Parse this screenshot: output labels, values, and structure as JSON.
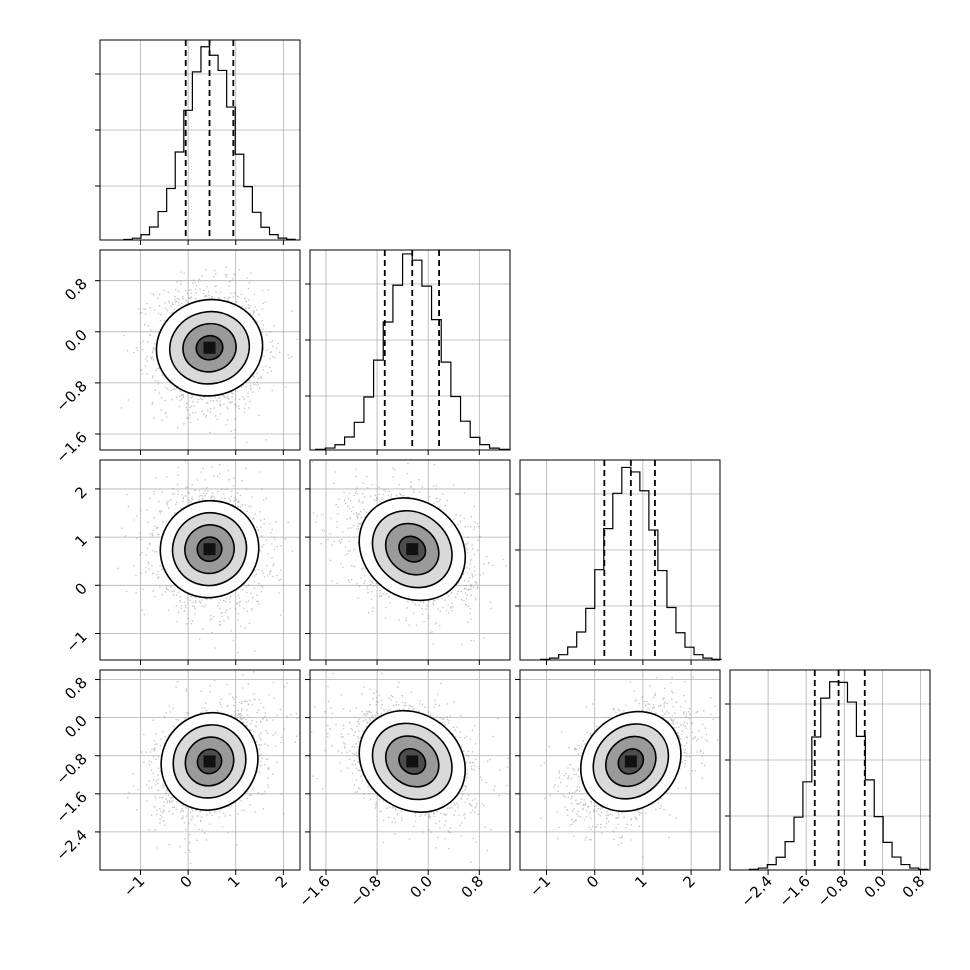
{
  "chart_data": {
    "type": "corner",
    "params": [
      {
        "range": [
          -1.85,
          2.35
        ],
        "ticks": [
          -1,
          0,
          1,
          2
        ],
        "tick_labels": [
          "−1",
          "0",
          "1",
          "2"
        ],
        "median": 0.45,
        "q16": -0.05,
        "q84": 0.95,
        "sigma": 0.5,
        "hist_max_frac": 0.95
      },
      {
        "range": [
          -1.85,
          1.28
        ],
        "ticks": [
          -1.6,
          -0.8,
          0.0,
          0.8
        ],
        "tick_labels": [
          "−1.6",
          "−0.8",
          "0.0",
          "0.8"
        ],
        "median": -0.25,
        "q16": -0.68,
        "q84": 0.17,
        "sigma": 0.42,
        "hist_max_frac": 0.96
      },
      {
        "range": [
          -1.55,
          2.6
        ],
        "ticks": [
          -1,
          0,
          1,
          2
        ],
        "tick_labels": [
          "−1",
          "0",
          "1",
          "2"
        ],
        "median": 0.75,
        "q16": 0.2,
        "q84": 1.25,
        "sigma": 0.52,
        "hist_max_frac": 0.95
      },
      {
        "range": [
          -3.2,
          1.0
        ],
        "ticks": [
          -2.4,
          -1.6,
          -0.8,
          0.0,
          0.8
        ],
        "tick_labels": [
          "−2.4",
          "−1.6",
          "−0.8",
          "0.0",
          "0.8"
        ],
        "median": -0.92,
        "q16": -1.42,
        "q84": -0.37,
        "sigma": 0.52,
        "hist_max_frac": 0.96
      }
    ],
    "pairs": [
      {
        "x": 0,
        "y": 1,
        "rho": -0.05
      },
      {
        "x": 0,
        "y": 2,
        "rho": -0.08
      },
      {
        "x": 1,
        "y": 2,
        "rho": -0.3
      },
      {
        "x": 0,
        "y": 3,
        "rho": 0.32
      },
      {
        "x": 1,
        "y": 3,
        "rho": -0.3
      },
      {
        "x": 2,
        "y": 3,
        "rho": 0.45
      }
    ],
    "hist_bins": 20,
    "quantiles": [
      0.16,
      0.5,
      0.84
    ],
    "contour_levels_sigma": [
      0.5,
      1.0,
      1.5,
      2.0
    ],
    "grid": true,
    "colors": {
      "scatter": "#808080",
      "line": "#000000",
      "grid": "#b0b0b0"
    }
  }
}
